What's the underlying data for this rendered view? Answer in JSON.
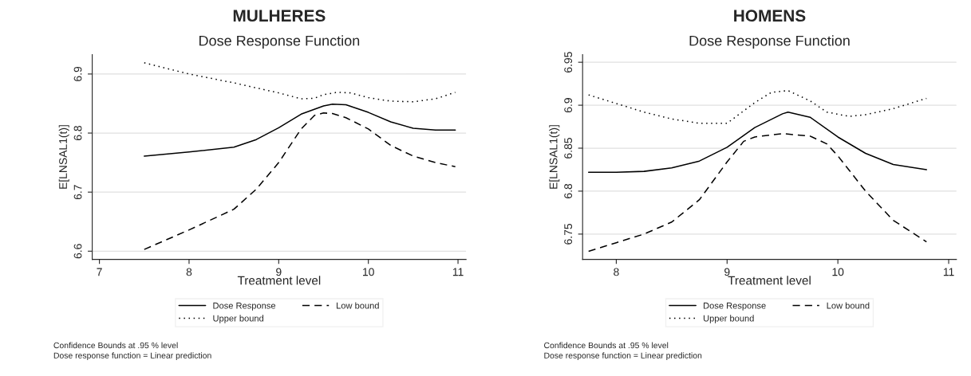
{
  "chart_data": [
    {
      "type": "line",
      "title": "MULHERES",
      "subtitle": "Dose Response Function",
      "xlabel": "Treatment level",
      "ylabel": "E[LNSAL1(t)]",
      "xlim": [
        6.92,
        11.09
      ],
      "xticks": [
        7,
        8,
        9,
        10,
        11
      ],
      "ylim": [
        6.586,
        6.933
      ],
      "yticks": [
        6.6,
        6.7,
        6.8,
        6.9
      ],
      "grid": "y",
      "legend": "bottom",
      "marker": "none",
      "series": [
        {
          "name": "Dose Response",
          "color": "#000000",
          "line_style": "solid",
          "x": [
            7.5,
            8.0,
            8.5,
            8.75,
            9.0,
            9.25,
            9.5,
            9.6,
            9.75,
            10.0,
            10.25,
            10.5,
            10.75,
            10.97
          ],
          "values": [
            6.761,
            6.768,
            6.776,
            6.789,
            6.809,
            6.832,
            6.846,
            6.849,
            6.848,
            6.835,
            6.819,
            6.808,
            6.805,
            6.805
          ]
        },
        {
          "name": "Low bound",
          "color": "#000000",
          "line_style": "dashed",
          "x": [
            7.5,
            8.0,
            8.5,
            8.75,
            9.0,
            9.25,
            9.4,
            9.5,
            9.6,
            9.75,
            10.0,
            10.25,
            10.5,
            10.75,
            10.97
          ],
          "values": [
            6.603,
            6.636,
            6.671,
            6.705,
            6.75,
            6.807,
            6.83,
            6.834,
            6.833,
            6.826,
            6.807,
            6.779,
            6.761,
            6.75,
            6.743
          ]
        },
        {
          "name": "Upper bound",
          "color": "#000000",
          "line_style": "dotted",
          "x": [
            7.5,
            8.0,
            8.5,
            9.0,
            9.25,
            9.4,
            9.5,
            9.65,
            9.8,
            10.0,
            10.25,
            10.5,
            10.75,
            10.97
          ],
          "values": [
            6.919,
            6.9,
            6.885,
            6.868,
            6.858,
            6.859,
            6.865,
            6.869,
            6.868,
            6.86,
            6.854,
            6.853,
            6.858,
            6.869
          ]
        }
      ],
      "annotations": [
        "Confidence Bounds at .95 % level",
        "Dose response function = Linear prediction"
      ]
    },
    {
      "type": "line",
      "title": "HOMENS",
      "subtitle": "Dose Response Function",
      "xlabel": "Treatment level",
      "ylabel": "E[LNSAL1(t)]",
      "xlim": [
        7.696,
        11.07
      ],
      "xticks": [
        8,
        9,
        10,
        11
      ],
      "ylim": [
        6.7205,
        6.959
      ],
      "yticks": [
        6.75,
        6.8,
        6.85,
        6.9,
        6.95
      ],
      "grid": "y",
      "legend": "bottom",
      "marker": "none",
      "series": [
        {
          "name": "Dose Response",
          "color": "#000000",
          "line_style": "solid",
          "x": [
            7.75,
            8.0,
            8.25,
            8.5,
            8.75,
            9.0,
            9.25,
            9.5,
            9.55,
            9.75,
            10.0,
            10.25,
            10.5,
            10.8
          ],
          "values": [
            6.822,
            6.822,
            6.823,
            6.827,
            6.835,
            6.851,
            6.874,
            6.89,
            6.892,
            6.886,
            6.863,
            6.844,
            6.831,
            6.825
          ]
        },
        {
          "name": "Low bound",
          "color": "#000000",
          "line_style": "dashed",
          "x": [
            7.75,
            8.0,
            8.25,
            8.5,
            8.75,
            9.0,
            9.15,
            9.25,
            9.5,
            9.75,
            9.9,
            10.0,
            10.25,
            10.5,
            10.8
          ],
          "values": [
            6.73,
            6.74,
            6.75,
            6.764,
            6.79,
            6.834,
            6.858,
            6.863,
            6.867,
            6.864,
            6.855,
            6.841,
            6.8,
            6.766,
            6.741
          ]
        },
        {
          "name": "Upper bound",
          "color": "#000000",
          "line_style": "dotted",
          "x": [
            7.75,
            8.0,
            8.25,
            8.5,
            8.75,
            9.0,
            9.25,
            9.4,
            9.55,
            9.75,
            9.9,
            10.1,
            10.25,
            10.5,
            10.8
          ],
          "values": [
            6.912,
            6.902,
            6.892,
            6.884,
            6.879,
            6.879,
            6.903,
            6.915,
            6.917,
            6.905,
            6.892,
            6.887,
            6.889,
            6.896,
            6.908
          ]
        }
      ],
      "annotations": [
        "Confidence Bounds at .95 % level",
        "Dose response function = Linear prediction"
      ]
    }
  ]
}
